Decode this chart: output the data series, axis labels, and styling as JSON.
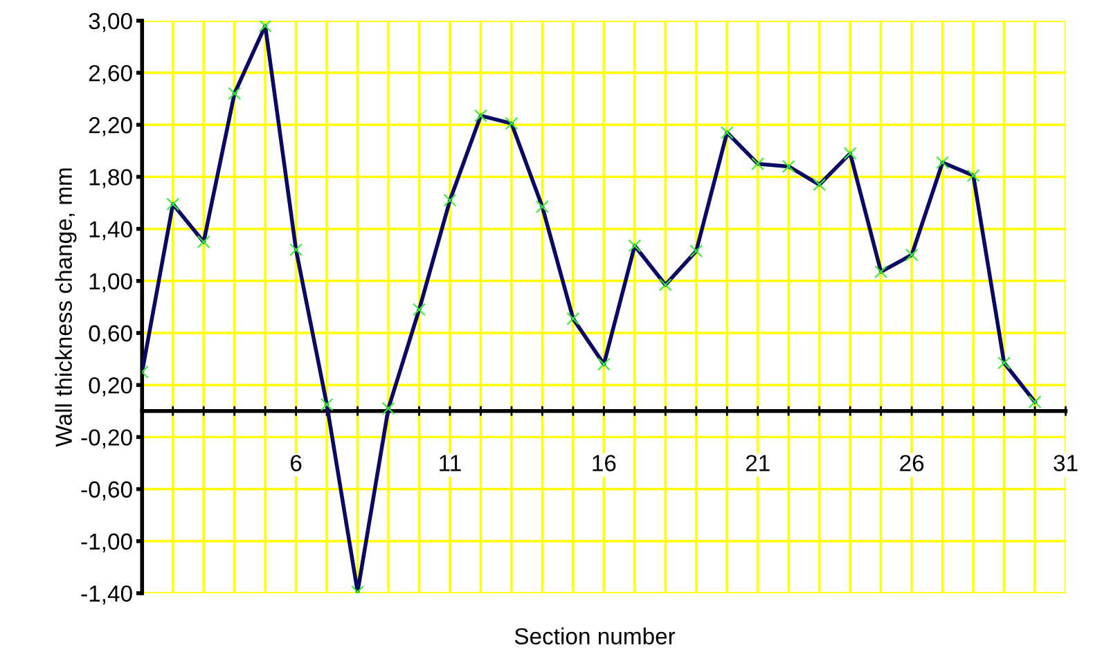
{
  "chart_data": {
    "type": "line",
    "xlabel": "Section number",
    "ylabel": "Wall thickness change, mm",
    "x": [
      1,
      2,
      3,
      4,
      5,
      6,
      7,
      8,
      9,
      10,
      11,
      12,
      13,
      14,
      15,
      16,
      17,
      18,
      19,
      20,
      21,
      22,
      23,
      24,
      25,
      26,
      27,
      28,
      29,
      30
    ],
    "series": [
      {
        "color": "#0a0a64",
        "values": [
          0.3,
          1.59,
          1.3,
          2.44,
          2.96,
          1.24,
          0.05,
          -1.39,
          0.02,
          0.78,
          1.62,
          2.27,
          2.21,
          1.57,
          0.71,
          0.36,
          1.27,
          0.97,
          1.23,
          2.14,
          1.9,
          1.88,
          1.74,
          1.98,
          1.07,
          1.2,
          1.91,
          1.81,
          0.37,
          0.07
        ]
      }
    ],
    "marker": "cross",
    "line_style": "solid",
    "grid": true,
    "xlim": [
      1,
      31
    ],
    "xticks": [
      {
        "value": 1,
        "label": null
      },
      {
        "value": 2,
        "label": null
      },
      {
        "value": 3,
        "label": null
      },
      {
        "value": 4,
        "label": null
      },
      {
        "value": 5,
        "label": null
      },
      6,
      {
        "value": 7,
        "label": null
      },
      {
        "value": 8,
        "label": null
      },
      {
        "value": 9,
        "label": null
      },
      {
        "value": 10,
        "label": null
      },
      11,
      {
        "value": 12,
        "label": null
      },
      {
        "value": 13,
        "label": null
      },
      {
        "value": 14,
        "label": null
      },
      {
        "value": 15,
        "label": null
      },
      16,
      {
        "value": 17,
        "label": null
      },
      {
        "value": 18,
        "label": null
      },
      {
        "value": 19,
        "label": null
      },
      {
        "value": 20,
        "label": null
      },
      21,
      {
        "value": 22,
        "label": null
      },
      {
        "value": 23,
        "label": null
      },
      {
        "value": 24,
        "label": null
      },
      {
        "value": 25,
        "label": null
      },
      26,
      {
        "value": 27,
        "label": null
      },
      {
        "value": 28,
        "label": null
      },
      {
        "value": 29,
        "label": null
      },
      {
        "value": 30,
        "label": null
      },
      31
    ],
    "ylim": [
      -1.4,
      3.0
    ],
    "yticks": [
      {
        "value": 3.0,
        "label": "3,00"
      },
      {
        "value": 2.6,
        "label": "2,60"
      },
      {
        "value": 2.2,
        "label": "2,20"
      },
      {
        "value": 1.8,
        "label": "1,80"
      },
      {
        "value": 1.4,
        "label": "1,40"
      },
      {
        "value": 1.0,
        "label": "1,00"
      },
      {
        "value": 0.6,
        "label": "0,60"
      },
      {
        "value": 0.2,
        "label": "0,20"
      },
      {
        "value": -0.2,
        "label": "-0,20"
      },
      {
        "value": -0.6,
        "label": "-0,60"
      },
      {
        "value": -1.0,
        "label": "-1,00"
      },
      {
        "value": -1.4,
        "label": "-1,40"
      }
    ]
  }
}
